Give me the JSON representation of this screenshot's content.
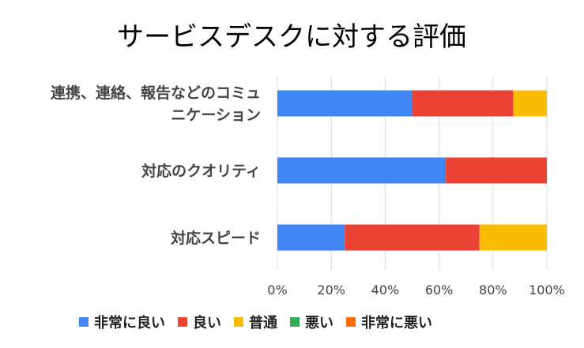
{
  "chart_data": {
    "type": "bar",
    "orientation": "horizontal",
    "stacked": "percent",
    "title": "サービスデスクに対する評価",
    "categories": [
      [
        "連携、連絡、報告などのコミュ",
        "ニケーション"
      ],
      [
        "対応のクオリティ"
      ],
      [
        "対応スピード"
      ]
    ],
    "series": [
      {
        "name": "非常に良い",
        "color": "#4285f4",
        "values": [
          50,
          62.5,
          25
        ]
      },
      {
        "name": "良い",
        "color": "#ea4335",
        "values": [
          37.5,
          37.5,
          50
        ]
      },
      {
        "name": "普通",
        "color": "#fbbc04",
        "values": [
          12.5,
          0,
          25
        ]
      },
      {
        "name": "悪い",
        "color": "#34a853",
        "values": [
          0,
          0,
          0
        ]
      },
      {
        "name": "非常に悪い",
        "color": "#ff6d01",
        "values": [
          0,
          0,
          0
        ]
      }
    ],
    "xlim": [
      0,
      100
    ],
    "xticks": [
      "0%",
      "20%",
      "40%",
      "60%",
      "80%",
      "100%"
    ],
    "grid": true,
    "legend_position": "bottom"
  }
}
